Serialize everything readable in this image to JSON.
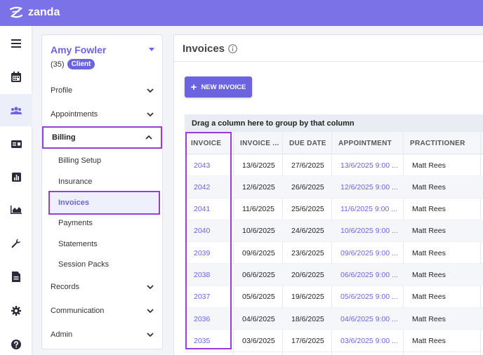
{
  "app": {
    "logo_text": "zanda",
    "brand_color": "#7b72e8",
    "accent_color": "#6c63e0",
    "highlight_color": "#9a3bdc"
  },
  "iconbar": [
    {
      "name": "hamburger-menu-icon",
      "active": false
    },
    {
      "name": "calendar-icon",
      "active": false
    },
    {
      "name": "people-icon",
      "active": true
    },
    {
      "name": "id-card-icon",
      "active": false
    },
    {
      "name": "bar-chart-icon",
      "active": false
    },
    {
      "name": "area-chart-icon",
      "active": false
    },
    {
      "name": "wrench-icon",
      "active": false
    },
    {
      "name": "document-icon",
      "active": false
    },
    {
      "name": "gear-icon",
      "active": false
    },
    {
      "name": "help-icon",
      "active": false
    }
  ],
  "client": {
    "name": "Amy Fowler",
    "count": "(35)",
    "badge": "Client"
  },
  "menu": {
    "profile": "Profile",
    "appointments": "Appointments",
    "billing": "Billing",
    "billing_sub": {
      "setup": "Billing Setup",
      "insurance": "Insurance",
      "invoices": "Invoices",
      "payments": "Payments",
      "statements": "Statements",
      "session_packs": "Session Packs"
    },
    "records": "Records",
    "communication": "Communication",
    "admin": "Admin"
  },
  "page": {
    "title": "Invoices",
    "new_button": "NEW INVOICE",
    "group_hint": "Drag a column here to group by that column"
  },
  "table": {
    "headers": [
      "INVOICE",
      "INVOICE ...",
      "DUE DATE",
      "APPOINTMENT",
      "PRACTITIONER"
    ],
    "rows": [
      [
        "2043",
        "13/6/2025",
        "27/6/2025",
        "13/6/2025 9:00 ...",
        "Matt Rees"
      ],
      [
        "2042",
        "12/6/2025",
        "26/6/2025",
        "12/6/2025 9:00 ...",
        "Matt Rees"
      ],
      [
        "2041",
        "11/6/2025",
        "25/6/2025",
        "11/6/2025 9:00 ...",
        "Matt Rees"
      ],
      [
        "2040",
        "10/6/2025",
        "24/6/2025",
        "10/6/2025 9:00 ...",
        "Matt Rees"
      ],
      [
        "2039",
        "09/6/2025",
        "23/6/2025",
        "09/6/2025 9:00 ...",
        "Matt Rees"
      ],
      [
        "2038",
        "06/6/2025",
        "20/6/2025",
        "06/6/2025 9:00 ...",
        "Matt Rees"
      ],
      [
        "2037",
        "05/6/2025",
        "19/6/2025",
        "05/6/2025 9:00 ...",
        "Matt Rees"
      ],
      [
        "2036",
        "04/6/2025",
        "18/6/2025",
        "04/6/2025 9:00 ...",
        "Matt Rees"
      ],
      [
        "2035",
        "03/6/2025",
        "17/6/2025",
        "03/6/2025 9:00 ...",
        "Matt Rees"
      ]
    ]
  }
}
